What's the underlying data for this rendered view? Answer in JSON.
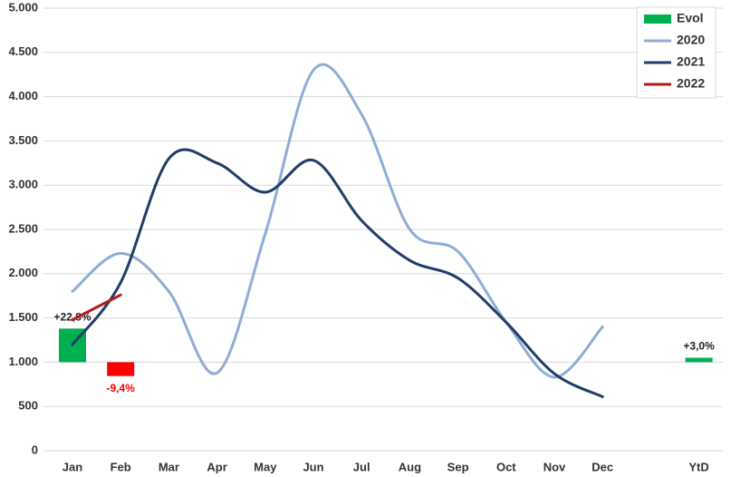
{
  "chart_data": {
    "type": "line",
    "categories": [
      "Jan",
      "Feb",
      "Mar",
      "Apr",
      "May",
      "Jun",
      "Jul",
      "Aug",
      "Sep",
      "Oct",
      "Nov",
      "Dec",
      null,
      "YtD"
    ],
    "ylim": [
      0,
      5000
    ],
    "yticks": [
      0,
      500,
      {
        "value": 1000,
        "label": "1.000"
      },
      {
        "value": 1500,
        "label": "1.500"
      },
      {
        "value": 2000,
        "label": "2.000"
      },
      {
        "value": 2500,
        "label": "2.500"
      },
      {
        "value": 3000,
        "label": "3.000"
      },
      {
        "value": 3500,
        "label": "3.500"
      },
      {
        "value": 4000,
        "label": "4.000"
      },
      {
        "value": 4500,
        "label": "4.500"
      },
      {
        "value": 5000,
        "label": "5.000"
      }
    ],
    "y2lim": [
      -60,
      240
    ],
    "grid": true,
    "legend": "top-right",
    "series": [
      {
        "name": "Evol",
        "type": "bar",
        "axis": "y2",
        "color": "#00b050",
        "negative_color": "#ff0000",
        "values": [
          22.8,
          -9.4,
          null,
          null,
          null,
          null,
          null,
          null,
          null,
          null,
          null,
          null,
          null,
          3.0
        ],
        "value_labels": [
          "+22,8%",
          "-9,4%",
          null,
          null,
          null,
          null,
          null,
          null,
          null,
          null,
          null,
          null,
          null,
          "+3,0%"
        ]
      },
      {
        "name": "2020",
        "type": "line",
        "color": "#8fadd5",
        "values": [
          1800,
          2230,
          1800,
          880,
          2450,
          4300,
          3800,
          2500,
          2250,
          1450,
          830,
          1400,
          null,
          null
        ]
      },
      {
        "name": "2021",
        "type": "line",
        "color": "#1f3d68",
        "values": [
          1200,
          1900,
          3300,
          3250,
          2920,
          3280,
          2600,
          2150,
          1950,
          1450,
          870,
          610,
          null,
          null
        ]
      },
      {
        "name": "2022",
        "type": "line",
        "color": "#b01c1c",
        "values": [
          1480,
          1760,
          null,
          null,
          null,
          null,
          null,
          null,
          null,
          null,
          null,
          null,
          null,
          null
        ]
      }
    ]
  }
}
